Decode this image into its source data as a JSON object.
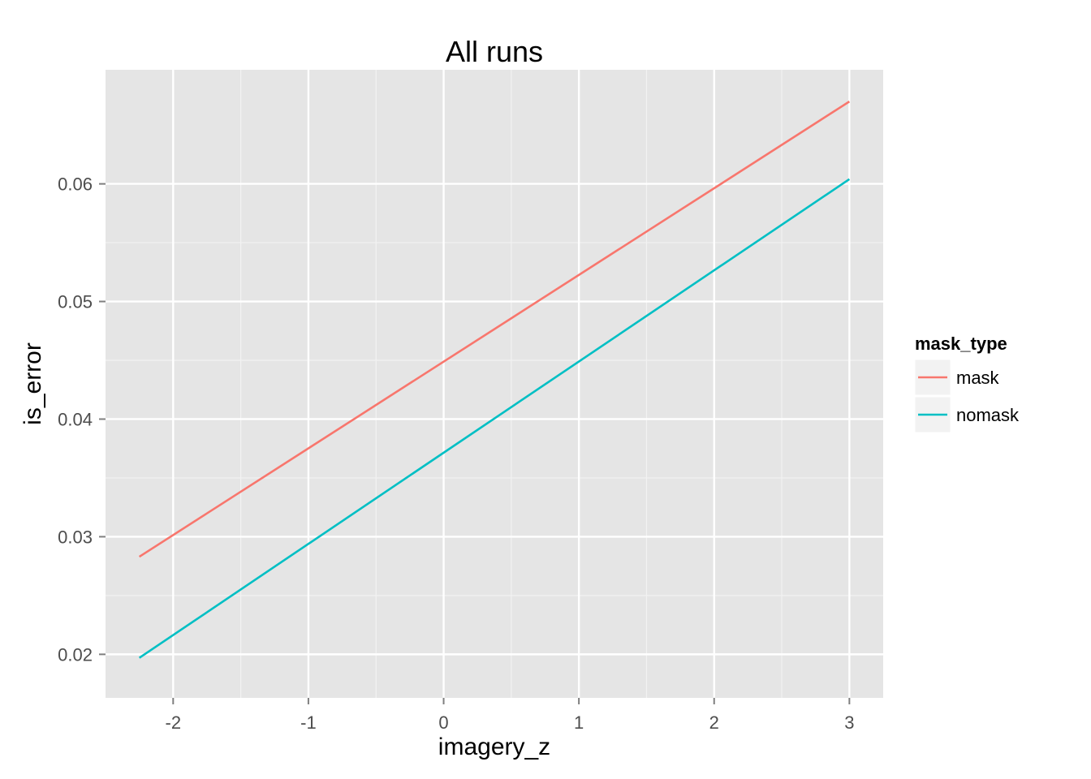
{
  "chart_data": {
    "type": "line",
    "title": "All runs",
    "xlabel": "imagery_z",
    "ylabel": "is_error",
    "xlim": [
      -2.5,
      3.25
    ],
    "ylim": [
      0.0163,
      0.0697
    ],
    "x_ticks": [
      {
        "value": -2,
        "label": "-2"
      },
      {
        "value": -1,
        "label": "-1"
      },
      {
        "value": 0,
        "label": "0"
      },
      {
        "value": 1,
        "label": "1"
      },
      {
        "value": 2,
        "label": "2"
      },
      {
        "value": 3,
        "label": "3"
      }
    ],
    "y_ticks": [
      {
        "value": 0.02,
        "label": "0.02"
      },
      {
        "value": 0.03,
        "label": "0.03"
      },
      {
        "value": 0.04,
        "label": "0.04"
      },
      {
        "value": 0.05,
        "label": "0.05"
      },
      {
        "value": 0.06,
        "label": "0.06"
      }
    ],
    "grid": true,
    "legend": {
      "title": "mask_type",
      "position": "right"
    },
    "series": [
      {
        "name": "mask",
        "color": "#F8766D",
        "x": [
          -2.25,
          3.0
        ],
        "y": [
          0.0283,
          0.067
        ]
      },
      {
        "name": "nomask",
        "color": "#00BFC4",
        "x": [
          -2.25,
          3.0
        ],
        "y": [
          0.0197,
          0.0604
        ]
      }
    ]
  }
}
